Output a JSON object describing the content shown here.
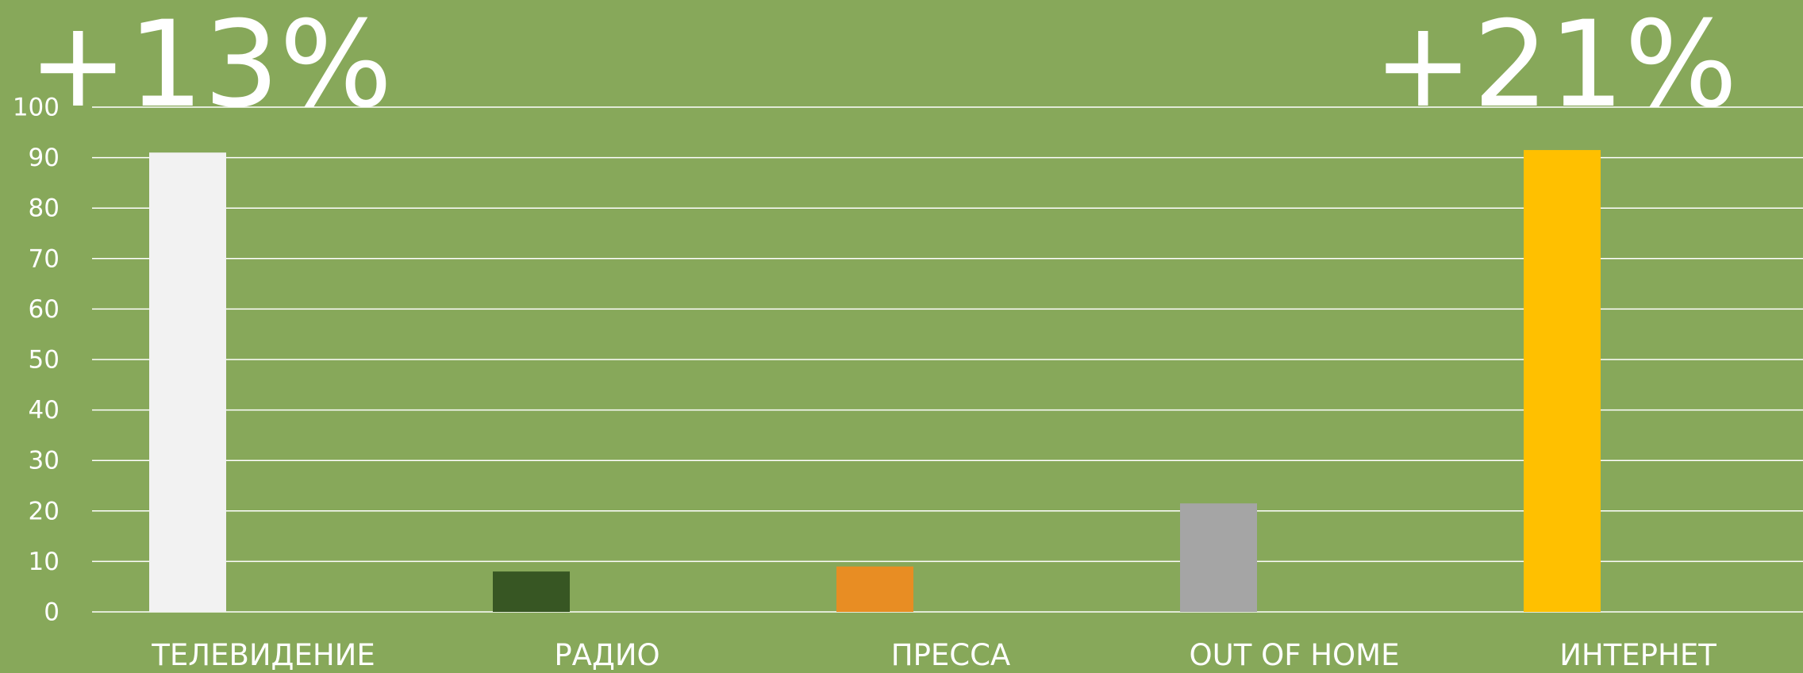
{
  "chart_data": {
    "type": "bar",
    "annotations": [
      "+13%",
      "+21%"
    ],
    "categories": [
      "ТЕЛЕВИДЕНИЕ",
      "РАДИО",
      "ПРЕССА",
      "OUT OF HOME",
      "ИНТЕРНЕТ"
    ],
    "values": [
      91,
      8,
      9,
      21.5,
      91.5
    ],
    "colors": [
      "#f2f2f2",
      "#375623",
      "#e88d23",
      "#a5a5a5",
      "#ffc000"
    ],
    "ylim": [
      0,
      100
    ],
    "yticks": [
      0,
      10,
      20,
      30,
      40,
      50,
      60,
      70,
      80,
      90,
      100
    ],
    "grid": true
  }
}
